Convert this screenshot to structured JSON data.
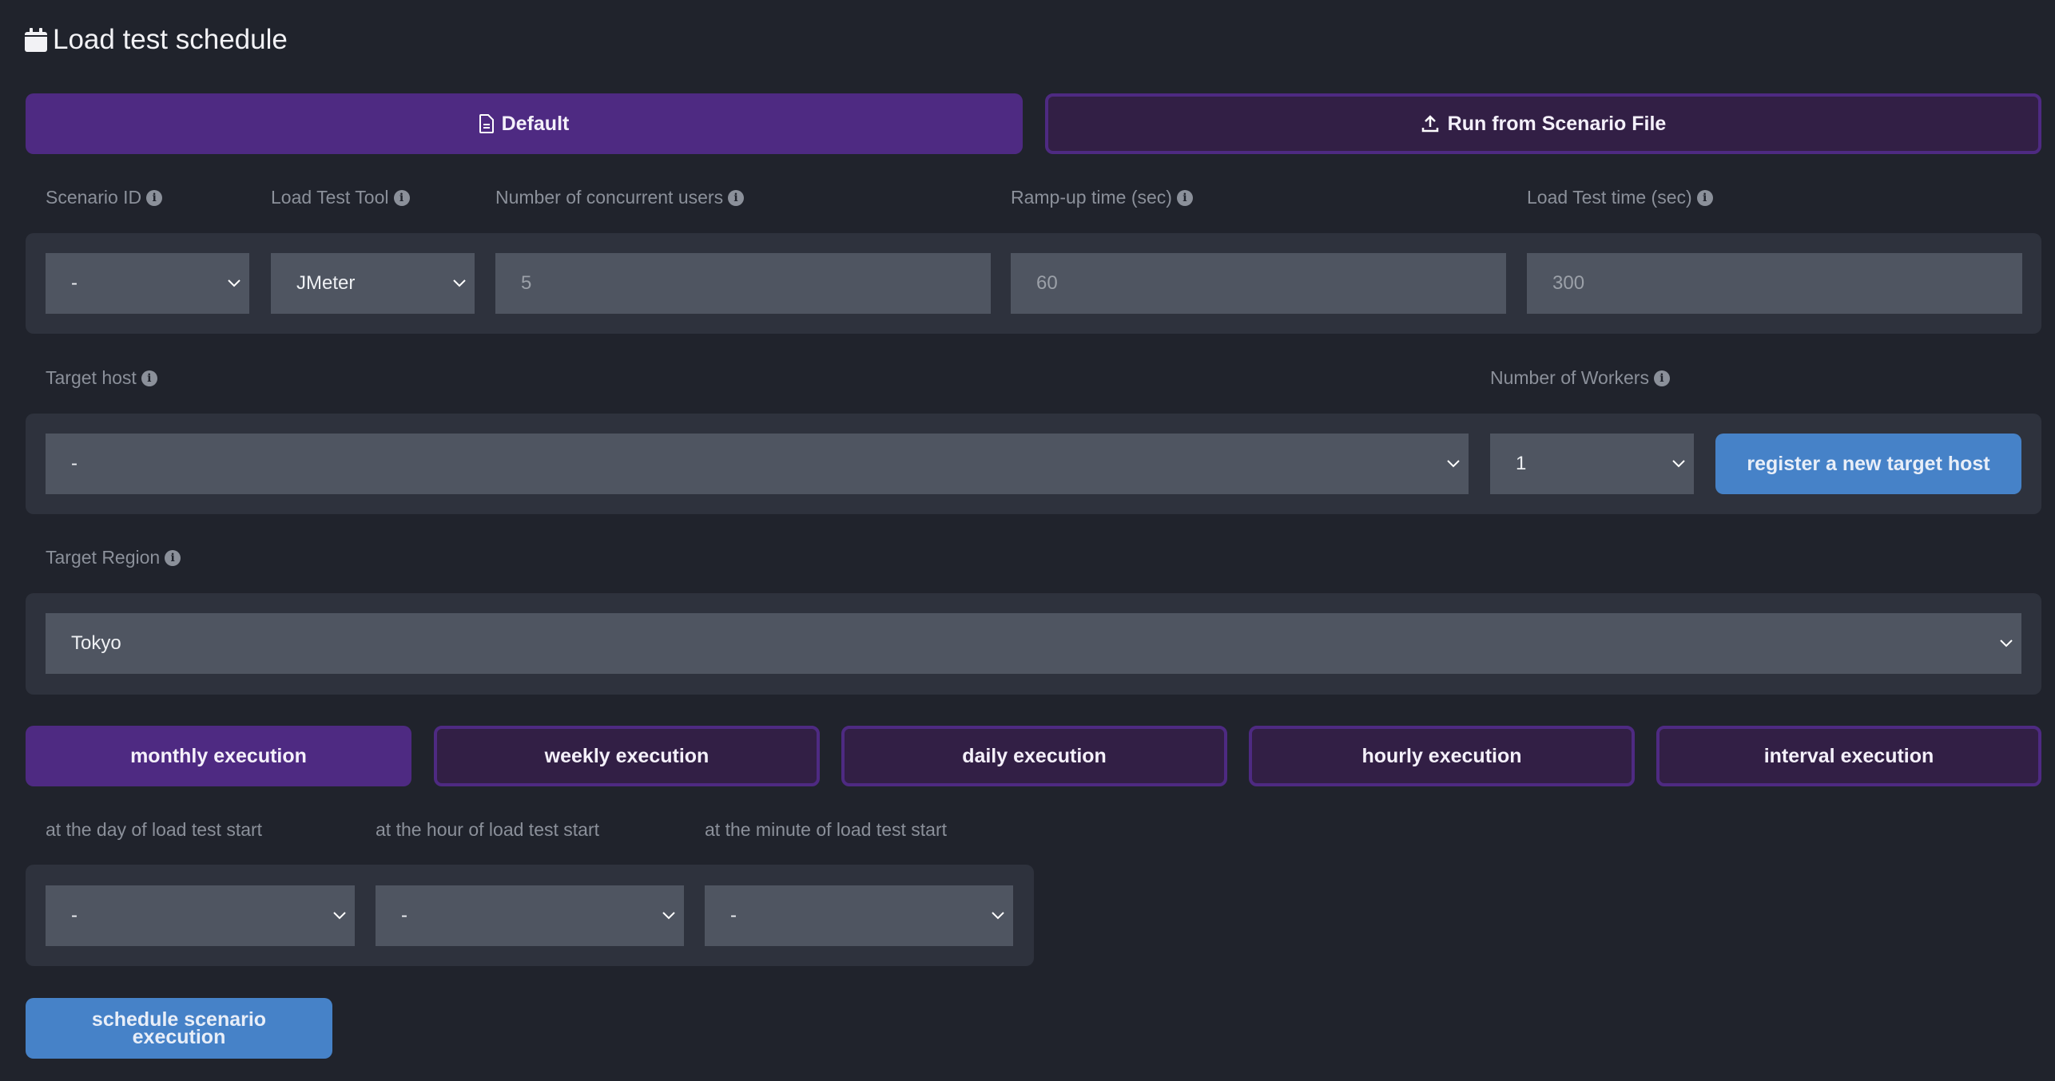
{
  "title": "Load test schedule",
  "mode_buttons": {
    "default": "Default",
    "scenario_file": "Run from Scenario File"
  },
  "labels": {
    "scenario_id": "Scenario ID",
    "tool": "Load Test Tool",
    "users": "Number of concurrent users",
    "ramp": "Ramp-up time (sec)",
    "time": "Load Test time (sec)",
    "target_host": "Target host",
    "workers": "Number of Workers",
    "region": "Target Region",
    "day": "at the day of load test start",
    "hour": "at the hour of load test start",
    "minute": "at the minute of load test start"
  },
  "values": {
    "scenario_id": "-",
    "tool": "JMeter",
    "users": "5",
    "ramp": "60",
    "time": "300",
    "target_host": "-",
    "workers": "1",
    "region": "Tokyo",
    "day": "-",
    "hour": "-",
    "minute": "-"
  },
  "register_button": "register a new target host",
  "tabs": [
    {
      "label": "monthly execution",
      "active": true
    },
    {
      "label": "weekly execution"
    },
    {
      "label": "daily execution"
    },
    {
      "label": "hourly execution"
    },
    {
      "label": "interval execution"
    }
  ],
  "schedule_button_line1": "schedule scenario",
  "schedule_button_line2": "execution",
  "colors": {
    "background": "#20232c",
    "panel": "#2e323d",
    "input": "#4f5561",
    "purple": "#4e2a82",
    "blue": "#4682c8"
  }
}
